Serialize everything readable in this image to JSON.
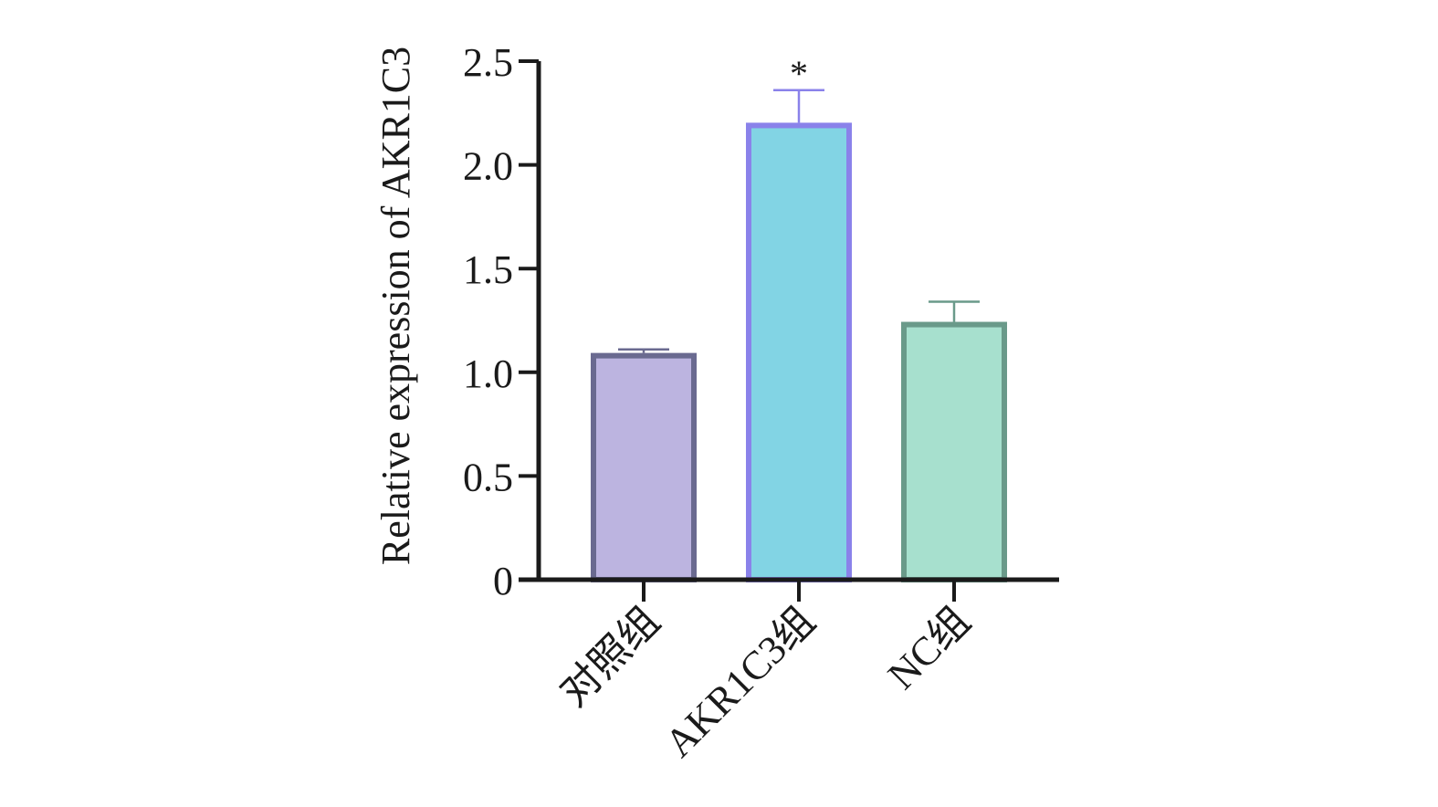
{
  "chart_data": {
    "type": "bar",
    "categories": [
      "对照组",
      "AKR1C3组",
      "NC组"
    ],
    "values": [
      1.08,
      2.19,
      1.23
    ],
    "error_upper": [
      0.03,
      0.17,
      0.11
    ],
    "ylabel": "Relative expression of AKR1C3",
    "xlabel": "",
    "ylim": [
      0,
      2.5
    ],
    "yticks": [
      0,
      0.5,
      1.0,
      1.5,
      2.0,
      2.5
    ],
    "ytick_labels": [
      "0",
      "0.5",
      "1.0",
      "1.5",
      "2.0",
      "2.5"
    ],
    "annotations": [
      "",
      "*",
      ""
    ],
    "bar_fill_colors": [
      "#bcb4e0",
      "#82d4e4",
      "#a7e0ce"
    ],
    "bar_edge_colors": [
      "#6a6a90",
      "#8a82ea",
      "#6a9a8a"
    ],
    "grid": false,
    "legend": "none"
  }
}
